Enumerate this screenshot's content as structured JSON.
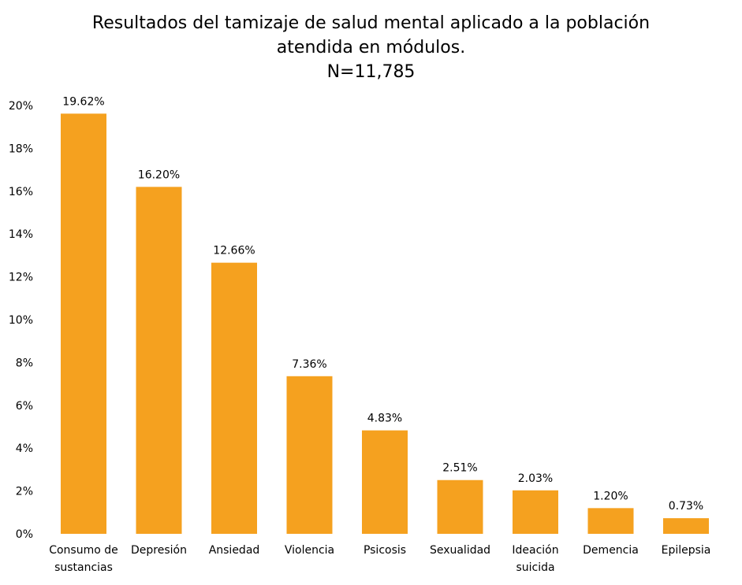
{
  "chart_data": {
    "type": "bar",
    "title_lines": [
      "Resultados del tamizaje de salud mental aplicado a la población",
      "atendida en módulos.",
      "N=11,785"
    ],
    "categories": [
      [
        "Consumo de",
        "sustancias"
      ],
      [
        "Depresión"
      ],
      [
        "Ansiedad"
      ],
      [
        "Violencia"
      ],
      [
        "Psicosis"
      ],
      [
        "Sexualidad"
      ],
      [
        "Ideación",
        "suicida"
      ],
      [
        "Demencia"
      ],
      [
        "Epilepsia"
      ]
    ],
    "values": [
      19.62,
      16.2,
      12.66,
      7.36,
      4.83,
      2.51,
      2.03,
      1.2,
      0.73
    ],
    "data_labels": [
      "19.62%",
      "16.20%",
      "12.66%",
      "7.36%",
      "4.83%",
      "2.51%",
      "2.03%",
      "1.20%",
      "0.73%"
    ],
    "yticks": [
      "0%",
      "2%",
      "4%",
      "6%",
      "8%",
      "10%",
      "12%",
      "14%",
      "16%",
      "18%",
      "20%"
    ],
    "ylim": [
      0,
      20
    ],
    "grid": false,
    "legend": "none",
    "bar_color": "#F5A11F"
  }
}
